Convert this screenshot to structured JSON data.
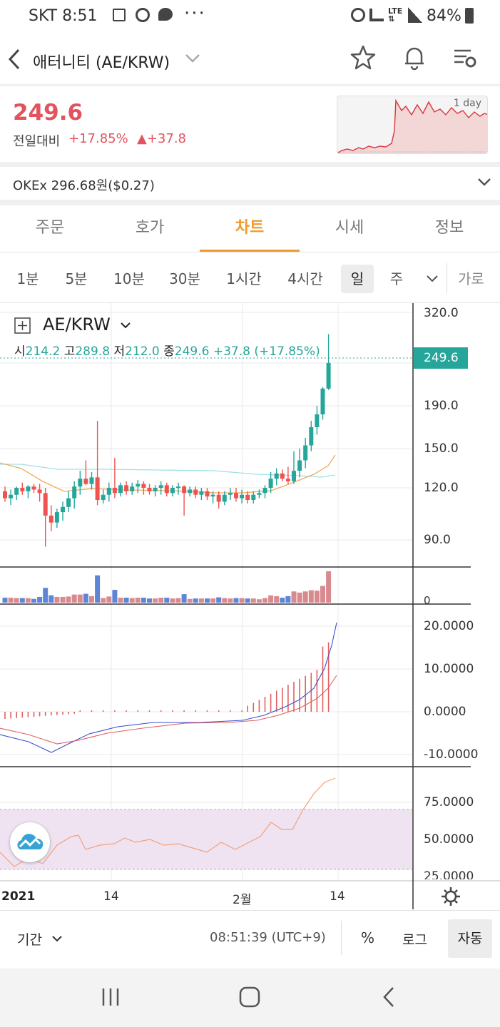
{
  "status_bar": {
    "carrier_time": "SKT 8:51",
    "dots": "···",
    "battery": "84%"
  },
  "header": {
    "title": "애터니티 (AE/KRW)"
  },
  "price": {
    "current": "249.6",
    "change_label": "전일대비",
    "change_pct": "+17.85%",
    "change_abs": "▲+37.8",
    "sparkline_label": "1 day"
  },
  "exchange": {
    "text": "OKEx 296.68원($0.27)"
  },
  "tabs": [
    "주문",
    "호가",
    "차트",
    "시세",
    "정보"
  ],
  "intervals": [
    "1분",
    "5분",
    "10분",
    "30분",
    "1시간",
    "4시간",
    "일",
    "주",
    "가로"
  ],
  "chart_header": {
    "symbol": "AE/KRW",
    "open_label": "시",
    "open": "214.2",
    "high_label": "고",
    "high": "289.8",
    "low_label": "저",
    "low": "212.0",
    "close_label": "종",
    "close": "249.6",
    "change": "+37.8 (+17.85%)"
  },
  "chart_data": {
    "type": "candlestick",
    "price_axis_ticks": [
      "320.0",
      "190.0",
      "150.0",
      "120.0",
      "90.0"
    ],
    "last_price_tag": "249.6",
    "volume_axis_ticks": [
      "0"
    ],
    "macd_axis_ticks": [
      "20.0000",
      "10.0000",
      "0.0000",
      "-10.0000"
    ],
    "rsi_axis_ticks": [
      "75.0000",
      "50.0000",
      "25.0000"
    ],
    "x_axis_labels": [
      "2021",
      "14",
      "2월",
      "14"
    ],
    "candles": [
      {
        "o": 118,
        "h": 121,
        "l": 112,
        "c": 114
      },
      {
        "o": 114,
        "h": 119,
        "l": 110,
        "c": 116
      },
      {
        "o": 116,
        "h": 121,
        "l": 113,
        "c": 120
      },
      {
        "o": 120,
        "h": 124,
        "l": 116,
        "c": 118
      },
      {
        "o": 118,
        "h": 122,
        "l": 114,
        "c": 121
      },
      {
        "o": 121,
        "h": 123,
        "l": 117,
        "c": 119
      },
      {
        "o": 119,
        "h": 123,
        "l": 112,
        "c": 117
      },
      {
        "o": 117,
        "h": 120,
        "l": 86,
        "c": 104
      },
      {
        "o": 104,
        "h": 110,
        "l": 95,
        "c": 100
      },
      {
        "o": 100,
        "h": 108,
        "l": 97,
        "c": 106
      },
      {
        "o": 106,
        "h": 112,
        "l": 101,
        "c": 109
      },
      {
        "o": 109,
        "h": 118,
        "l": 106,
        "c": 114
      },
      {
        "o": 114,
        "h": 125,
        "l": 108,
        "c": 121
      },
      {
        "o": 121,
        "h": 133,
        "l": 116,
        "c": 127
      },
      {
        "o": 127,
        "h": 141,
        "l": 122,
        "c": 123
      },
      {
        "o": 123,
        "h": 132,
        "l": 119,
        "c": 128
      },
      {
        "o": 128,
        "h": 176,
        "l": 110,
        "c": 113
      },
      {
        "o": 113,
        "h": 119,
        "l": 111,
        "c": 116
      },
      {
        "o": 116,
        "h": 124,
        "l": 112,
        "c": 120
      },
      {
        "o": 120,
        "h": 143,
        "l": 114,
        "c": 117
      },
      {
        "o": 117,
        "h": 124,
        "l": 115,
        "c": 122
      },
      {
        "o": 122,
        "h": 125,
        "l": 116,
        "c": 118
      },
      {
        "o": 118,
        "h": 124,
        "l": 116,
        "c": 121
      },
      {
        "o": 121,
        "h": 126,
        "l": 117,
        "c": 123
      },
      {
        "o": 123,
        "h": 125,
        "l": 116,
        "c": 120
      },
      {
        "o": 120,
        "h": 123,
        "l": 116,
        "c": 118
      },
      {
        "o": 118,
        "h": 122,
        "l": 115,
        "c": 120
      },
      {
        "o": 120,
        "h": 125,
        "l": 116,
        "c": 122
      },
      {
        "o": 122,
        "h": 124,
        "l": 115,
        "c": 117
      },
      {
        "o": 117,
        "h": 122,
        "l": 115,
        "c": 120
      },
      {
        "o": 120,
        "h": 124,
        "l": 116,
        "c": 121
      },
      {
        "o": 121,
        "h": 122,
        "l": 104,
        "c": 117
      },
      {
        "o": 117,
        "h": 121,
        "l": 115,
        "c": 119
      },
      {
        "o": 119,
        "h": 121,
        "l": 114,
        "c": 116
      },
      {
        "o": 116,
        "h": 120,
        "l": 113,
        "c": 118
      },
      {
        "o": 118,
        "h": 120,
        "l": 113,
        "c": 115
      },
      {
        "o": 115,
        "h": 118,
        "l": 111,
        "c": 116
      },
      {
        "o": 116,
        "h": 118,
        "l": 108,
        "c": 112
      },
      {
        "o": 112,
        "h": 118,
        "l": 110,
        "c": 116
      },
      {
        "o": 116,
        "h": 120,
        "l": 113,
        "c": 117
      },
      {
        "o": 117,
        "h": 120,
        "l": 112,
        "c": 114
      },
      {
        "o": 114,
        "h": 119,
        "l": 111,
        "c": 116
      },
      {
        "o": 116,
        "h": 118,
        "l": 111,
        "c": 113
      },
      {
        "o": 113,
        "h": 118,
        "l": 111,
        "c": 116
      },
      {
        "o": 116,
        "h": 119,
        "l": 114,
        "c": 117
      },
      {
        "o": 117,
        "h": 122,
        "l": 114,
        "c": 120
      },
      {
        "o": 120,
        "h": 132,
        "l": 117,
        "c": 127
      },
      {
        "o": 127,
        "h": 135,
        "l": 122,
        "c": 131
      },
      {
        "o": 131,
        "h": 134,
        "l": 125,
        "c": 127
      },
      {
        "o": 127,
        "h": 136,
        "l": 123,
        "c": 125
      },
      {
        "o": 125,
        "h": 148,
        "l": 123,
        "c": 133
      },
      {
        "o": 133,
        "h": 150,
        "l": 128,
        "c": 141
      },
      {
        "o": 141,
        "h": 160,
        "l": 135,
        "c": 153
      },
      {
        "o": 153,
        "h": 176,
        "l": 148,
        "c": 170
      },
      {
        "o": 170,
        "h": 190,
        "l": 163,
        "c": 182
      },
      {
        "o": 182,
        "h": 216,
        "l": 177,
        "c": 214
      },
      {
        "o": 214,
        "h": 289.8,
        "l": 212,
        "c": 249.6
      }
    ]
  },
  "bottom_bar": {
    "period": "기간",
    "time": "08:51:39 (UTC+9)",
    "percent": "%",
    "log": "로그",
    "auto": "자동"
  }
}
